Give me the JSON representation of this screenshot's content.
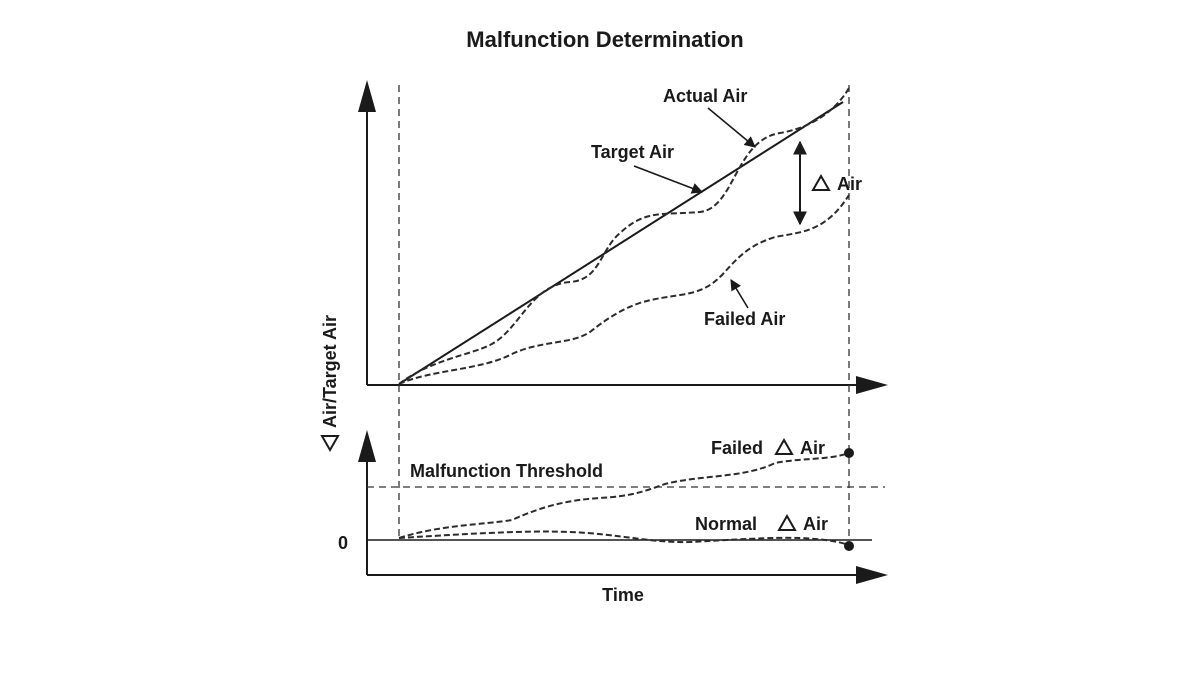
{
  "title": "Malfunction Determination",
  "y_axis_label": "Air/Target Air",
  "x_axis_label": "Time",
  "zero_label": "0",
  "labels": {
    "actual_air": "Actual Air",
    "target_air": "Target Air",
    "delta_air": "Air",
    "failed_air": "Failed Air",
    "failed_delta_prefix": "Failed",
    "failed_delta_suffix": "Air",
    "malfunction_threshold": "Malfunction Threshold",
    "normal_delta_prefix": "Normal",
    "normal_delta_suffix": "Air"
  },
  "icons": {
    "delta": "delta-triangle-icon",
    "arrow": "arrowhead-icon",
    "endpoint": "filled-circle-icon"
  }
}
